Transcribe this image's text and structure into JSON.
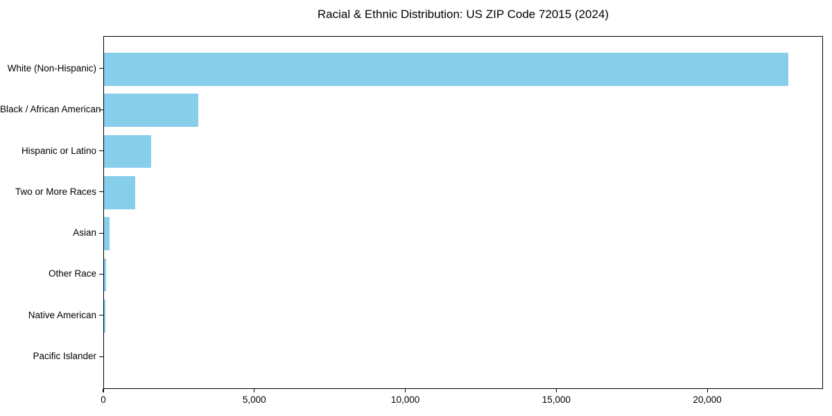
{
  "chart_data": {
    "type": "bar",
    "orientation": "horizontal",
    "title": "Racial & Ethnic Distribution: US ZIP Code 72015 (2024)",
    "categories": [
      "White (Non-Hispanic)",
      "Black / African American",
      "Hispanic or Latino",
      "Two or More Races",
      "Asian",
      "Other Race",
      "Native American",
      "Pacific Islander"
    ],
    "values": [
      22660,
      3120,
      1560,
      1030,
      185,
      70,
      55,
      0
    ],
    "xlabel": "",
    "ylabel": "",
    "xlim": [
      0,
      23830
    ],
    "xticks": {
      "values": [
        0,
        5000,
        10000,
        15000,
        20000
      ],
      "labels": [
        "0",
        "5,000",
        "10,000",
        "15,000",
        "20,000"
      ]
    },
    "grid": false,
    "legend": null,
    "bar_color": "#87CEEB",
    "axis_color": "#000000",
    "background_color": "#FFFFFF"
  }
}
